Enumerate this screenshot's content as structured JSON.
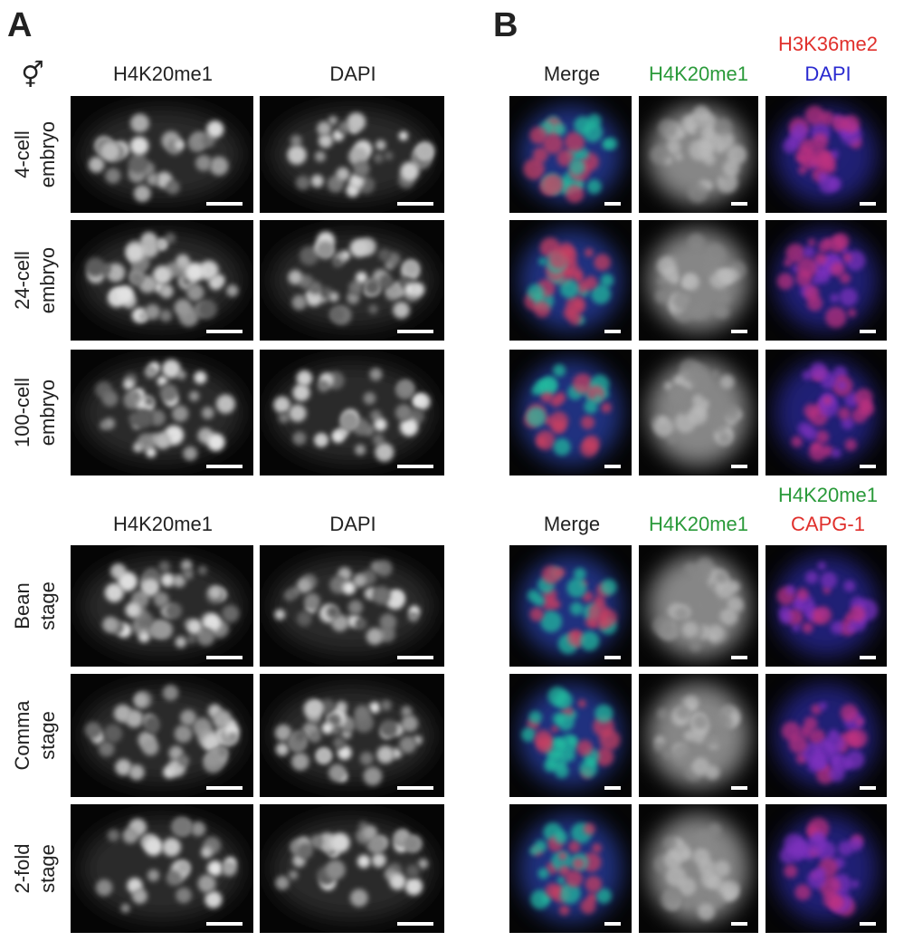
{
  "panel_a": {
    "label": "A",
    "symbol": "⚥",
    "top_headers": [
      "H4K20me1",
      "DAPI"
    ],
    "top_rows": [
      [
        "4-cell",
        "embryo"
      ],
      [
        "24-cell",
        "embryo"
      ],
      [
        "100-cell",
        "embryo"
      ]
    ],
    "bottom_headers": [
      "H4K20me1",
      "DAPI"
    ],
    "bottom_rows": [
      [
        "Bean",
        "stage"
      ],
      [
        "Comma",
        "stage"
      ],
      [
        "2-fold",
        "stage"
      ]
    ]
  },
  "panel_b": {
    "label": "B",
    "top_headers": [
      "Merge",
      "H4K20me1",
      "H3K36me2",
      "DAPI"
    ],
    "bottom_headers": [
      "Merge",
      "H4K20me1",
      "H4K20me1",
      "CAPG-1"
    ]
  }
}
